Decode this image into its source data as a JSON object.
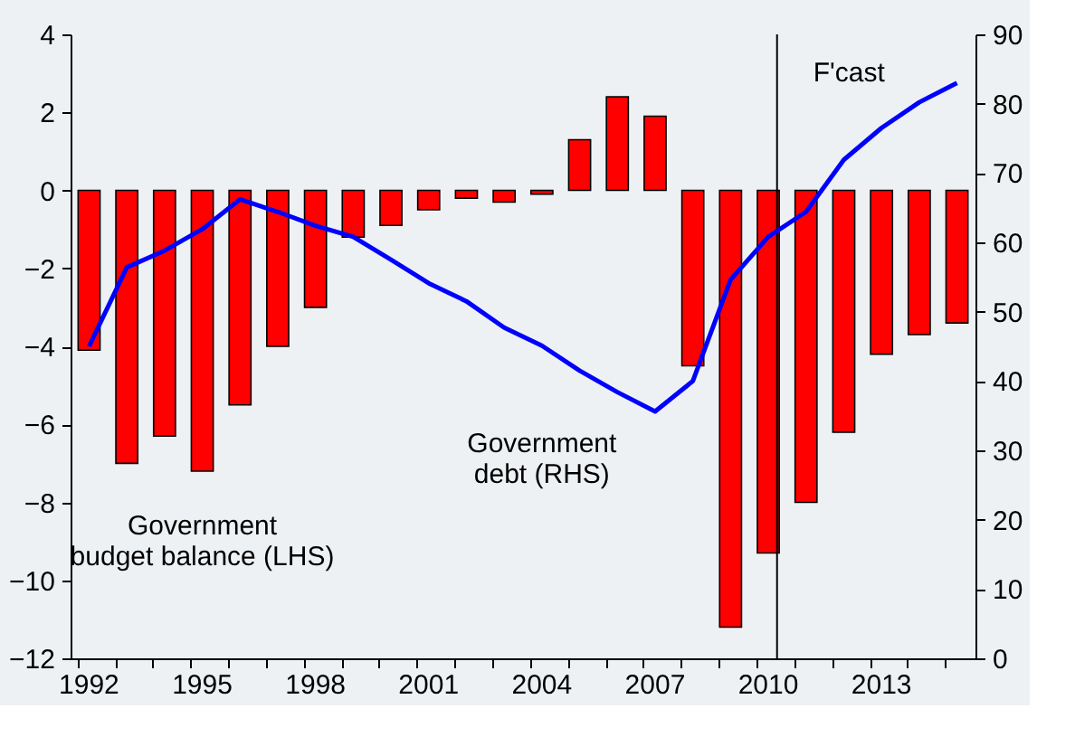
{
  "chart_data": {
    "type": "bar",
    "categories": [
      "1992",
      null,
      null,
      "1995",
      null,
      null,
      "1998",
      null,
      null,
      "2001",
      null,
      null,
      "2004",
      null,
      null,
      "2007",
      null,
      null,
      "2010",
      null,
      null,
      "2013",
      null,
      null
    ],
    "series": [
      {
        "name": "Government\nbudget balance (LHS)",
        "color": "#ff0000",
        "values": [
          -4.1,
          -7.0,
          -6.3,
          -7.2,
          -5.5,
          -4.0,
          -3.0,
          -1.2,
          -0.9,
          -0.5,
          -0.2,
          -0.3,
          -0.1,
          1.3,
          2.4,
          1.9,
          -4.5,
          -11.2,
          -9.3,
          -8.0,
          -6.2,
          -4.2,
          -3.7,
          -3.4
        ]
      },
      {
        "name": "Government\ndebt (RHS)",
        "color": "#0000ff",
        "type": "line",
        "axis": "y2",
        "values": [
          45,
          56.4,
          58.8,
          61.9,
          66.2,
          64.4,
          62.4,
          60.8,
          57.5,
          54.1,
          51.5,
          47.7,
          45.1,
          41.5,
          38.4,
          35.6,
          40,
          54.6,
          60.8,
          64.4,
          71.9,
          76.5,
          80.2,
          83
        ]
      }
    ],
    "ylim": [
      -12,
      4
    ],
    "yticks": [
      -12,
      -10,
      -8,
      -6,
      -4,
      -2,
      0,
      2,
      4
    ],
    "y2lim": [
      0,
      90
    ],
    "y2ticks": [
      0,
      10,
      20,
      30,
      40,
      50,
      60,
      70,
      80,
      90
    ],
    "ref_lines": [
      {
        "axis": "x",
        "value": "2010",
        "label": "F'cast",
        "color": "#000000"
      }
    ],
    "grid": false
  }
}
